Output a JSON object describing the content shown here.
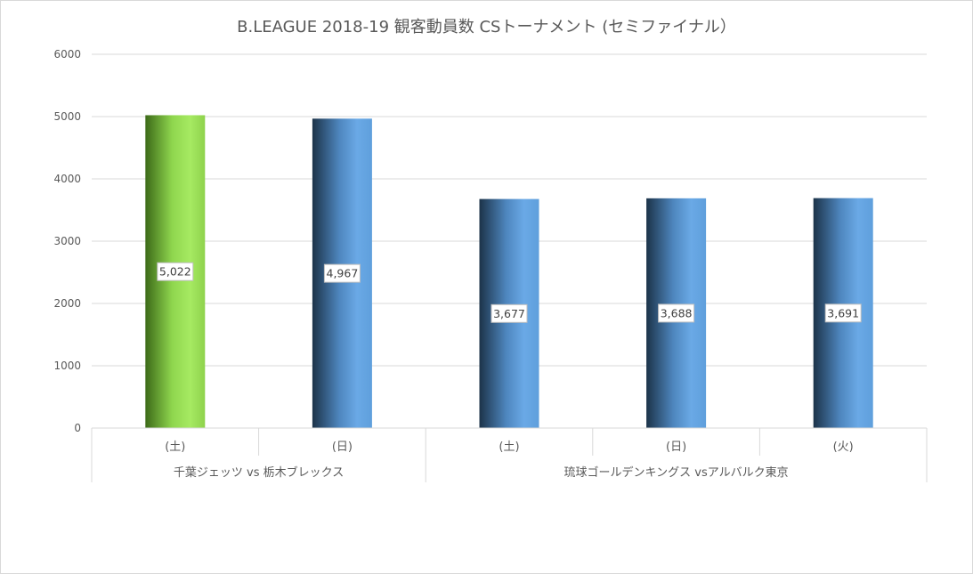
{
  "chart_data": {
    "type": "bar",
    "title": "B.LEAGUE 2018-19 観客動員数 CSトーナメント (セミファイナル）",
    "xlabel": "",
    "ylabel": "",
    "ylim": [
      0,
      6000
    ],
    "yticks": [
      0,
      1000,
      2000,
      3000,
      4000,
      5000,
      6000
    ],
    "grid": true,
    "legend": "none",
    "categories": [
      "(土)",
      "(日)",
      "(土)",
      "(日)",
      "(火)"
    ],
    "groups": [
      {
        "label": "千葉ジェッツ vs 栃木ブレックス",
        "count": 2
      },
      {
        "label": "琉球ゴールデンキングス vsアルバルク東京",
        "count": 3
      }
    ],
    "values": [
      5022,
      4967,
      3677,
      3688,
      3691
    ],
    "data_labels": [
      "5,022",
      "4,967",
      "3,677",
      "3,688",
      "3,691"
    ],
    "bar_colors": [
      "#7ac143",
      "#5b9bd5",
      "#5b9bd5",
      "#5b9bd5",
      "#5b9bd5"
    ]
  }
}
